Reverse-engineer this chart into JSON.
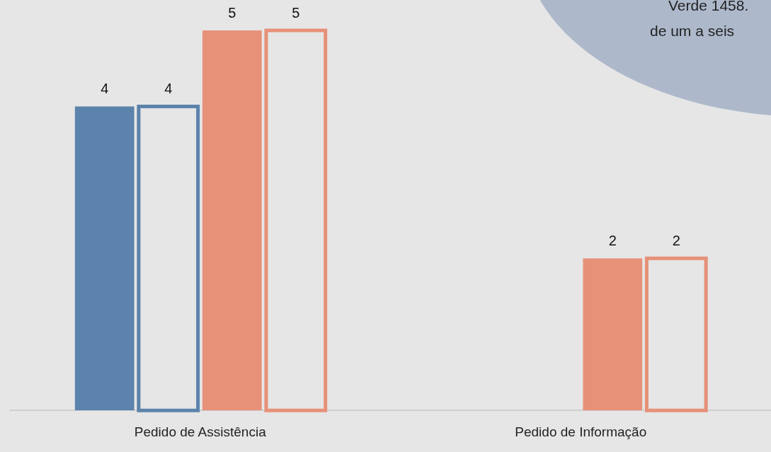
{
  "chart_data": {
    "type": "bar",
    "categories": [
      "Pedido de Assistência",
      "Pedido de Informação"
    ],
    "series": [
      {
        "color": "#5b83ab",
        "values": [
          4,
          null
        ]
      },
      {
        "color": "#5b83ab",
        "values": [
          4,
          null
        ]
      },
      {
        "color": "#e69178",
        "values": [
          5,
          2
        ]
      },
      {
        "color": "#e69178",
        "values": [
          5,
          2
        ]
      }
    ],
    "relative": false,
    "ylim": [
      0,
      5
    ],
    "data_labels": true,
    "grid": false,
    "legend": false,
    "annotations": [
      "Verde 1458.",
      "de um a seis"
    ]
  }
}
